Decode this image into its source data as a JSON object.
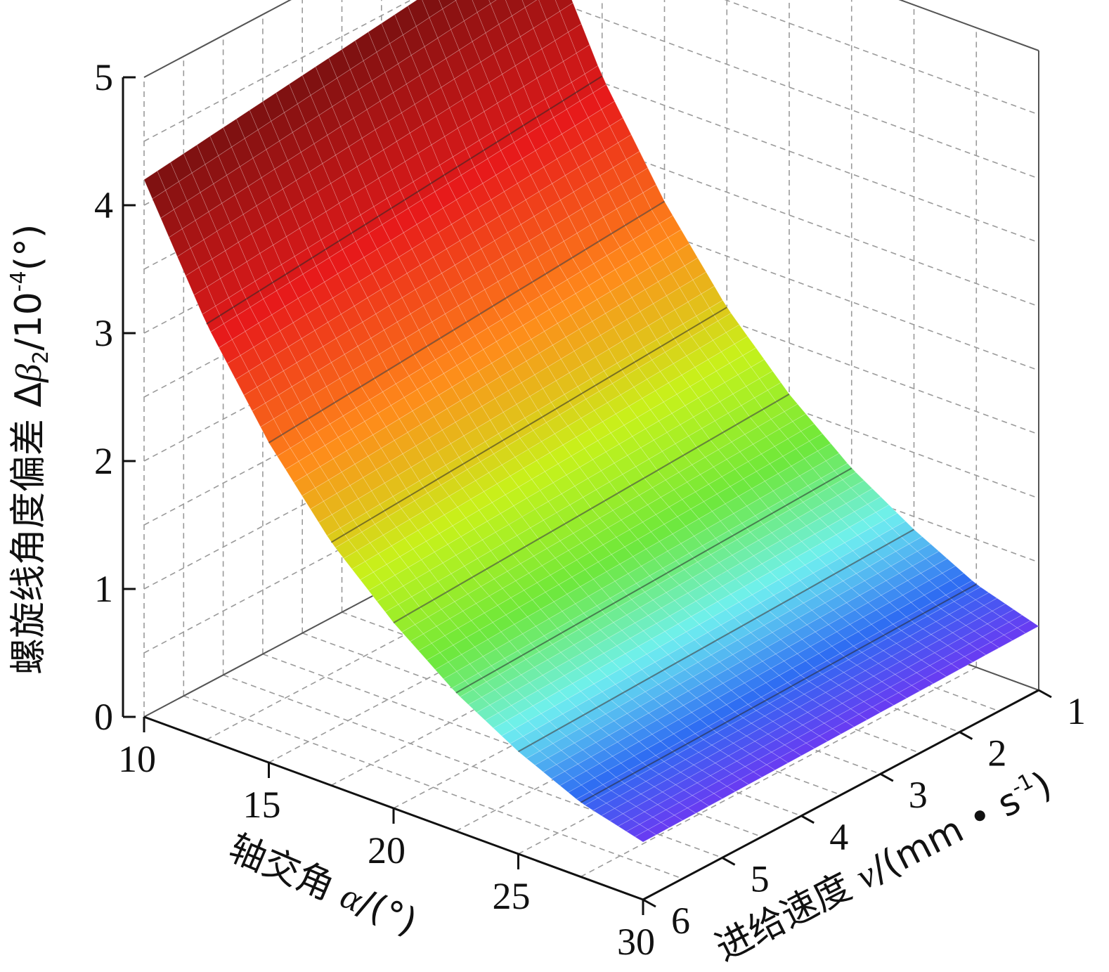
{
  "chart_data": {
    "type": "surface3d",
    "title": "",
    "x_axis": {
      "label_prefix": "轴交角 ",
      "label_symbol": "α",
      "label_unit": "/(°)",
      "ticks": [
        "10",
        "15",
        "20",
        "25",
        "30"
      ],
      "range": [
        10,
        30
      ]
    },
    "y_axis": {
      "label_prefix": "进给速度 ",
      "label_symbol": "v",
      "label_unit_open": "/(mm • s",
      "label_unit_sup": "-1",
      "label_unit_close": ")",
      "ticks": [
        "1",
        "2",
        "3",
        "4",
        "5",
        "6"
      ],
      "range": [
        1,
        6
      ]
    },
    "z_axis": {
      "label_prefix": "螺旋线角度偏差 Δ",
      "label_symbol": "β",
      "label_sub": "2",
      "label_mid": "/10",
      "label_sup": "-4",
      "label_unit": "(°)",
      "ticks": [
        "0",
        "1",
        "2",
        "3",
        "4",
        "5"
      ],
      "range": [
        0,
        5
      ]
    },
    "surface": {
      "description_of_shape": "z decreases with axis-crossing angle, nearly independent of feed speed",
      "alpha": [
        10,
        12.5,
        15,
        17.5,
        20,
        22.5,
        25,
        27.5,
        30
      ],
      "v": [
        1,
        6
      ],
      "z_at_v1": [
        4.6,
        3.55,
        2.75,
        2.1,
        1.6,
        1.2,
        0.9,
        0.65,
        0.5
      ],
      "z_at_v6": [
        4.2,
        3.25,
        2.5,
        1.9,
        1.45,
        1.08,
        0.8,
        0.58,
        0.45
      ]
    },
    "colormap": [
      "#7a1010",
      "#e81a1a",
      "#ff8a1a",
      "#c8f21a",
      "#6ee83a",
      "#6ff0f0",
      "#2f6ef2",
      "#6a3af2"
    ],
    "grid": true
  }
}
